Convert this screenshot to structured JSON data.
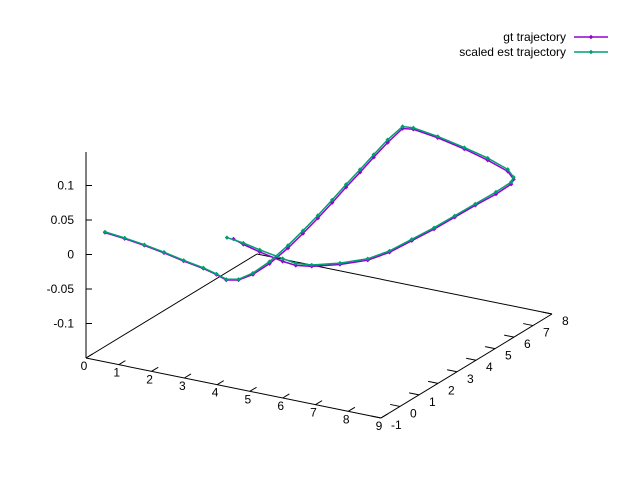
{
  "chart_data": {
    "type": "line",
    "dimensions": 3,
    "title": "",
    "xlabel": "",
    "ylabel": "",
    "zlabel": "",
    "x_ticks": [
      "0",
      "1",
      "2",
      "3",
      "4",
      "5",
      "6",
      "7",
      "8",
      "9"
    ],
    "y_ticks": [
      "-1",
      "0",
      "1",
      "2",
      "3",
      "4",
      "5",
      "6",
      "7",
      "8"
    ],
    "z_ticks": [
      "0.1",
      "0.05",
      "0",
      "-0.05",
      "-0.1"
    ],
    "xlim": [
      0,
      9
    ],
    "ylim": [
      -1,
      8
    ],
    "zlim": [
      -0.15,
      0.1
    ],
    "legend_position": "top-right",
    "grid": false,
    "series": [
      {
        "name": "gt trajectory",
        "color": "#9400d3",
        "marker": "diamond",
        "points": [
          [
            0.0,
            0.0,
            0.015
          ],
          [
            0.6,
            0.0,
            0.012
          ],
          [
            1.2,
            0.0,
            0.008
          ],
          [
            1.8,
            0.0,
            0.003
          ],
          [
            2.4,
            0.0,
            -0.003
          ],
          [
            3.0,
            0.0,
            -0.008
          ],
          [
            3.4,
            0.0,
            -0.013
          ],
          [
            3.7,
            0.0,
            -0.018
          ],
          [
            3.9,
            0.3,
            -0.021
          ],
          [
            4.05,
            0.8,
            -0.02
          ],
          [
            4.15,
            1.5,
            -0.015
          ],
          [
            4.25,
            2.3,
            -0.005
          ],
          [
            4.3,
            3.0,
            0.005
          ],
          [
            4.35,
            3.7,
            0.016
          ],
          [
            4.38,
            4.4,
            0.027
          ],
          [
            4.4,
            5.1,
            0.038
          ],
          [
            4.42,
            5.8,
            0.048
          ],
          [
            4.43,
            6.5,
            0.058
          ],
          [
            4.45,
            7.2,
            0.068
          ],
          [
            4.5,
            7.9,
            0.077
          ],
          [
            4.8,
            7.95,
            0.078
          ],
          [
            5.6,
            7.85,
            0.075
          ],
          [
            6.5,
            7.7,
            0.07
          ],
          [
            7.3,
            7.55,
            0.064
          ],
          [
            8.0,
            7.4,
            0.057
          ],
          [
            8.35,
            7.1,
            0.054
          ],
          [
            8.45,
            6.8,
            0.053
          ],
          [
            8.45,
            6.0,
            0.052
          ],
          [
            8.4,
            5.0,
            0.052
          ],
          [
            8.35,
            4.0,
            0.051
          ],
          [
            8.3,
            3.0,
            0.05
          ],
          [
            8.2,
            2.0,
            0.049
          ],
          [
            8.1,
            1.0,
            0.048
          ],
          [
            7.9,
            0.2,
            0.048
          ],
          [
            7.4,
            -0.4,
            0.047
          ],
          [
            6.8,
            -0.85,
            0.046
          ],
          [
            6.4,
            -1.0,
            0.046
          ],
          [
            6.0,
            -1.0,
            0.048
          ],
          [
            5.3,
            -1.0,
            0.055
          ],
          [
            4.8,
            -1.0,
            0.061
          ],
          [
            4.5,
            -1.0,
            0.066
          ]
        ]
      },
      {
        "name": "scaled est trajectory",
        "color": "#009e73",
        "marker": "diamond",
        "points": [
          [
            0.0,
            0.0,
            0.016
          ],
          [
            0.6,
            0.0,
            0.013
          ],
          [
            1.2,
            0.0,
            0.009
          ],
          [
            1.8,
            0.0,
            0.004
          ],
          [
            2.4,
            0.0,
            -0.002
          ],
          [
            3.0,
            0.0,
            -0.007
          ],
          [
            3.4,
            0.0,
            -0.012
          ],
          [
            3.7,
            0.0,
            -0.017
          ],
          [
            3.9,
            0.3,
            -0.02
          ],
          [
            4.05,
            0.8,
            -0.018
          ],
          [
            4.15,
            1.5,
            -0.012
          ],
          [
            4.25,
            2.3,
            -0.001
          ],
          [
            4.3,
            3.0,
            0.009
          ],
          [
            4.35,
            3.7,
            0.02
          ],
          [
            4.38,
            4.4,
            0.031
          ],
          [
            4.4,
            5.1,
            0.042
          ],
          [
            4.42,
            5.8,
            0.052
          ],
          [
            4.43,
            6.5,
            0.062
          ],
          [
            4.45,
            7.2,
            0.072
          ],
          [
            4.5,
            7.9,
            0.08
          ],
          [
            4.8,
            7.95,
            0.08
          ],
          [
            5.6,
            7.85,
            0.077
          ],
          [
            6.5,
            7.7,
            0.072
          ],
          [
            7.3,
            7.55,
            0.067
          ],
          [
            8.0,
            7.4,
            0.06
          ],
          [
            8.35,
            7.1,
            0.057
          ],
          [
            8.45,
            6.8,
            0.056
          ],
          [
            8.45,
            6.0,
            0.055
          ],
          [
            8.4,
            5.0,
            0.054
          ],
          [
            8.35,
            4.0,
            0.053
          ],
          [
            8.3,
            3.0,
            0.052
          ],
          [
            8.2,
            2.0,
            0.051
          ],
          [
            8.1,
            1.0,
            0.05
          ],
          [
            7.9,
            0.2,
            0.05
          ],
          [
            7.4,
            -0.4,
            0.049
          ],
          [
            6.8,
            -0.85,
            0.048
          ],
          [
            6.4,
            -1.0,
            0.049
          ],
          [
            6.0,
            -1.0,
            0.052
          ],
          [
            5.3,
            -1.0,
            0.058
          ],
          [
            4.8,
            -1.0,
            0.063
          ],
          [
            4.3,
            -1.0,
            0.066
          ]
        ]
      }
    ]
  }
}
